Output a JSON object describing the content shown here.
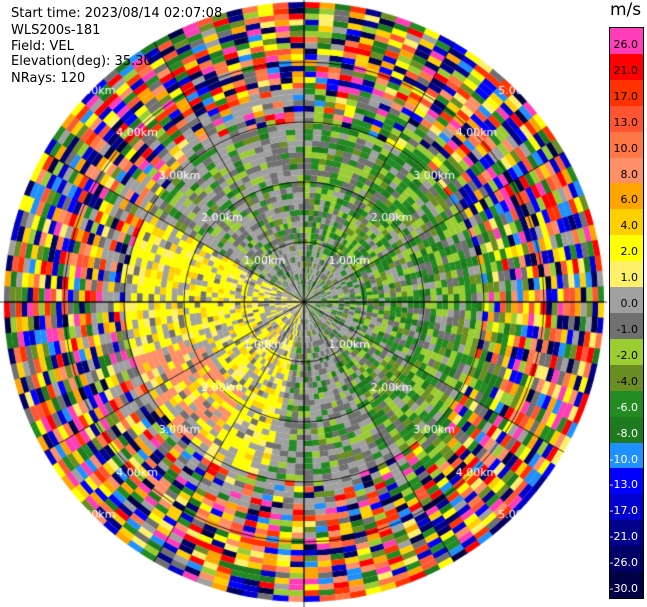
{
  "info": {
    "start_time": "Start time: 2023/08/14 02:07:08",
    "instrument": "WLS200s-181",
    "field": "Field: VEL",
    "elevation": "Elevation(deg): 35.30",
    "nrays": "NRays: 120"
  },
  "range_labels": [
    "1.00km",
    "2.00km",
    "3.00km",
    "4.00km",
    "5.00km"
  ],
  "colorbar": {
    "unit": "m/s",
    "ticks": [
      "26.0",
      "21.0",
      "17.0",
      "13.0",
      "10.0",
      "8.0",
      "6.0",
      "4.0",
      "2.0",
      "1.0",
      "0.0",
      "-1.0",
      "-2.0",
      "-4.0",
      "-6.0",
      "-8.0",
      "-10.0",
      "-13.0",
      "-17.0",
      "-21.0",
      "-26.0",
      "-30.0"
    ],
    "colors": [
      "#ff3db8",
      "#ff0000",
      "#ff3300",
      "#ff5533",
      "#ff7744",
      "#ff8f66",
      "#ffa500",
      "#ffd000",
      "#ffff00",
      "#fff06a",
      "#a0a0a0",
      "#707070",
      "#9acd32",
      "#6b8e23",
      "#228b22",
      "#1e7a1e",
      "#1e90ff",
      "#0000ff",
      "#0000cd",
      "#00008b",
      "#000066",
      "#000044"
    ]
  }
}
